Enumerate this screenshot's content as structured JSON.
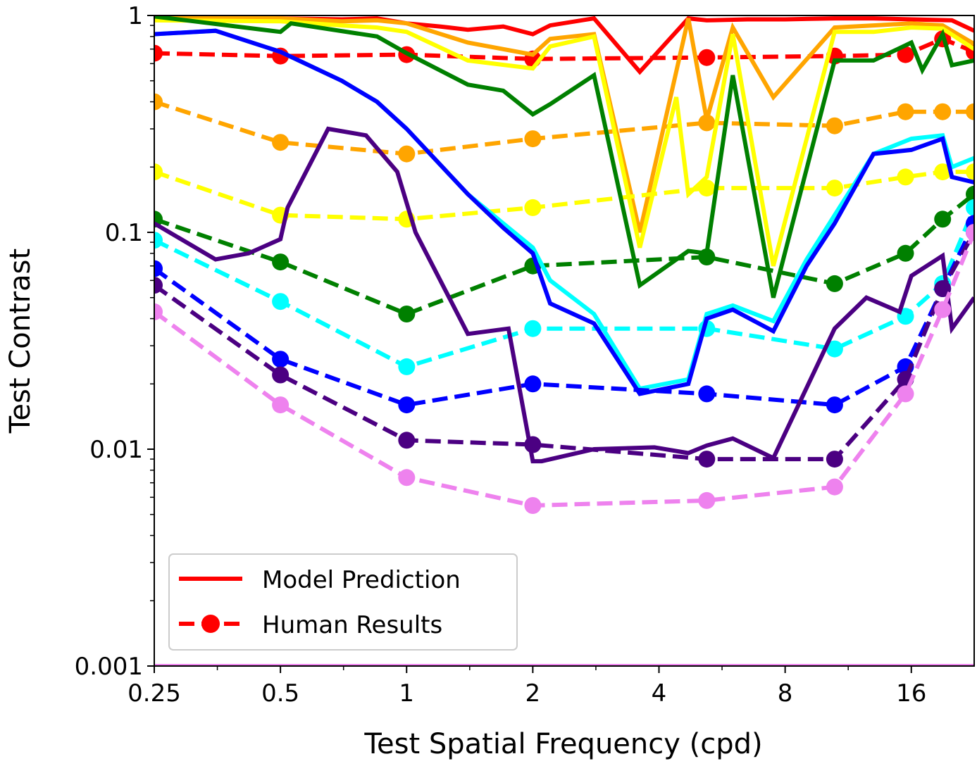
{
  "chart_data": {
    "type": "line",
    "xlabel": "Test Spatial Frequency (cpd)",
    "ylabel": "Test Contrast",
    "xscale": "log2",
    "yscale": "log10",
    "xlim": [
      0.25,
      22.6
    ],
    "ylim": [
      0.001,
      1
    ],
    "xticks": [
      0.25,
      0.5,
      1,
      2,
      4,
      8,
      16
    ],
    "xtick_labels": [
      "0.25",
      "0.5",
      "1",
      "2",
      "4",
      "8",
      "16"
    ],
    "yticks": [
      0.001,
      0.01,
      0.1,
      1
    ],
    "ytick_labels": [
      "0.001",
      "0.01",
      "0.1",
      "1"
    ],
    "grid": false,
    "legend_position": "lower-left",
    "legend": [
      {
        "label": "Model Prediction",
        "style": "solid",
        "color": "#ff0000"
      },
      {
        "label": "Human Results",
        "style": "dashed-marker",
        "color": "#ff0000"
      }
    ],
    "series": [
      {
        "color": "#ff0000",
        "model": {
          "x": [
            0.25,
            0.5,
            0.7,
            0.85,
            1,
            1.2,
            1.4,
            1.7,
            2,
            2.2,
            2.8,
            3.6,
            4.7,
            5.2,
            6.5,
            8,
            10.5,
            13,
            16,
            20,
            22.6
          ],
          "y": [
            0.99,
            0.97,
            0.96,
            0.97,
            0.92,
            0.89,
            0.86,
            0.89,
            0.82,
            0.9,
            0.97,
            0.55,
            0.97,
            0.95,
            0.96,
            0.96,
            0.97,
            0.97,
            0.96,
            0.95,
            0.85
          ]
        },
        "human": {
          "x": [
            0.25,
            0.5,
            1,
            2,
            5.2,
            10.5,
            15.5,
            19,
            22.6
          ],
          "y": [
            0.67,
            0.65,
            0.66,
            0.63,
            0.64,
            0.65,
            0.66,
            0.78,
            0.68
          ]
        }
      },
      {
        "color": "#ffa500",
        "model": {
          "x": [
            0.25,
            0.5,
            0.7,
            0.85,
            1,
            1.4,
            2,
            2.2,
            2.8,
            3.6,
            4.7,
            5.2,
            6,
            7.5,
            10.5,
            13,
            16,
            19,
            22.6
          ],
          "y": [
            0.99,
            0.97,
            0.94,
            0.95,
            0.92,
            0.75,
            0.66,
            0.78,
            0.82,
            0.1,
            0.97,
            0.33,
            0.88,
            0.42,
            0.88,
            0.9,
            0.92,
            0.9,
            0.74
          ]
        },
        "human": {
          "x": [
            0.25,
            0.5,
            1,
            2,
            5.2,
            10.5,
            15.5,
            19,
            22.6
          ],
          "y": [
            0.4,
            0.26,
            0.23,
            0.27,
            0.32,
            0.31,
            0.36,
            0.36,
            0.36
          ]
        }
      },
      {
        "color": "#ffff00",
        "model": {
          "x": [
            0.25,
            0.5,
            0.7,
            0.85,
            1,
            1.4,
            2,
            2.2,
            2.8,
            3.6,
            4.4,
            4.7,
            5.2,
            6,
            7.5,
            10.5,
            13,
            16,
            19,
            22.6
          ],
          "y": [
            0.95,
            0.94,
            0.9,
            0.88,
            0.84,
            0.62,
            0.57,
            0.72,
            0.8,
            0.085,
            0.42,
            0.15,
            0.18,
            0.82,
            0.07,
            0.84,
            0.84,
            0.88,
            0.87,
            0.7
          ]
        },
        "human": {
          "x": [
            0.25,
            0.5,
            1,
            2,
            5.2,
            10.5,
            15.5,
            19,
            22.6
          ],
          "y": [
            0.19,
            0.12,
            0.115,
            0.13,
            0.16,
            0.16,
            0.18,
            0.19,
            0.19
          ]
        }
      },
      {
        "color": "#008000",
        "model": {
          "x": [
            0.25,
            0.5,
            0.53,
            0.85,
            1,
            1.4,
            1.7,
            2,
            2.2,
            2.8,
            3.6,
            4.7,
            5.2,
            6,
            7.5,
            10.5,
            13,
            16,
            17,
            19,
            20,
            22.6
          ],
          "y": [
            0.99,
            0.84,
            0.92,
            0.8,
            0.67,
            0.48,
            0.45,
            0.35,
            0.39,
            0.53,
            0.057,
            0.082,
            0.08,
            0.53,
            0.05,
            0.62,
            0.62,
            0.75,
            0.56,
            0.82,
            0.59,
            0.62
          ]
        },
        "human": {
          "x": [
            0.25,
            0.5,
            1,
            2,
            5.2,
            10.5,
            15.5,
            19,
            22.6
          ],
          "y": [
            0.115,
            0.073,
            0.042,
            0.07,
            0.077,
            0.058,
            0.08,
            0.115,
            0.15
          ]
        }
      },
      {
        "color": "#00ffff",
        "model": {
          "x": [
            0.25,
            0.35,
            0.5,
            0.7,
            0.85,
            1,
            1.4,
            1.7,
            2,
            2.2,
            2.8,
            3.6,
            4.7,
            5.2,
            6,
            7.5,
            9,
            10.5,
            13,
            16,
            19,
            20,
            22.6
          ],
          "y": [
            0.82,
            0.85,
            0.68,
            0.5,
            0.4,
            0.3,
            0.15,
            0.11,
            0.085,
            0.06,
            0.042,
            0.019,
            0.021,
            0.042,
            0.046,
            0.039,
            0.075,
            0.12,
            0.23,
            0.27,
            0.28,
            0.2,
            0.22
          ]
        },
        "human": {
          "x": [
            0.25,
            0.5,
            1,
            2,
            5.2,
            10.5,
            15.5,
            19,
            22.6
          ],
          "y": [
            0.092,
            0.048,
            0.024,
            0.036,
            0.036,
            0.029,
            0.041,
            0.058,
            0.13
          ]
        }
      },
      {
        "color": "#0000ff",
        "model": {
          "x": [
            0.25,
            0.35,
            0.5,
            0.7,
            0.85,
            1,
            1.4,
            1.7,
            2,
            2.2,
            2.8,
            3.6,
            4.7,
            5.2,
            6,
            7.5,
            9,
            10.5,
            13,
            16,
            19,
            20,
            22.6
          ],
          "y": [
            0.82,
            0.85,
            0.68,
            0.5,
            0.4,
            0.3,
            0.15,
            0.105,
            0.08,
            0.047,
            0.038,
            0.018,
            0.02,
            0.04,
            0.044,
            0.035,
            0.07,
            0.11,
            0.23,
            0.24,
            0.27,
            0.18,
            0.17
          ]
        },
        "human": {
          "x": [
            0.25,
            0.5,
            1,
            2,
            5.2,
            10.5,
            15.5,
            19,
            22.6
          ],
          "y": [
            0.068,
            0.026,
            0.016,
            0.02,
            0.018,
            0.016,
            0.024,
            0.055,
            0.11
          ]
        }
      },
      {
        "color": "#4b0082",
        "model": {
          "x": [
            0.25,
            0.35,
            0.42,
            0.5,
            0.52,
            0.65,
            0.8,
            0.95,
            1.05,
            1.4,
            1.75,
            2,
            2.1,
            2.8,
            3.9,
            4.7,
            5.2,
            6,
            7.5,
            10.5,
            12.5,
            15,
            16,
            19,
            20,
            22.6
          ],
          "y": [
            0.11,
            0.075,
            0.08,
            0.093,
            0.13,
            0.3,
            0.28,
            0.19,
            0.1,
            0.034,
            0.036,
            0.0088,
            0.0088,
            0.01,
            0.0102,
            0.0096,
            0.0104,
            0.0112,
            0.0091,
            0.036,
            0.05,
            0.043,
            0.063,
            0.078,
            0.036,
            0.05
          ]
        },
        "human": {
          "x": [
            0.25,
            0.5,
            1,
            2,
            5.2,
            10.5,
            15.5,
            19,
            22.6
          ],
          "y": [
            0.057,
            0.022,
            0.011,
            0.0105,
            0.009,
            0.009,
            0.021,
            0.055,
            0.1
          ]
        }
      },
      {
        "color": "#ee82ee",
        "model": {
          "x": [
            0.25,
            22.6
          ],
          "y": [
            0.001,
            0.001
          ]
        },
        "human": {
          "x": [
            0.25,
            0.5,
            1,
            2,
            5.2,
            10.5,
            15.5,
            19,
            22.6
          ],
          "y": [
            0.043,
            0.016,
            0.0074,
            0.0055,
            0.0058,
            0.0067,
            0.018,
            0.044,
            0.1
          ]
        }
      }
    ]
  }
}
